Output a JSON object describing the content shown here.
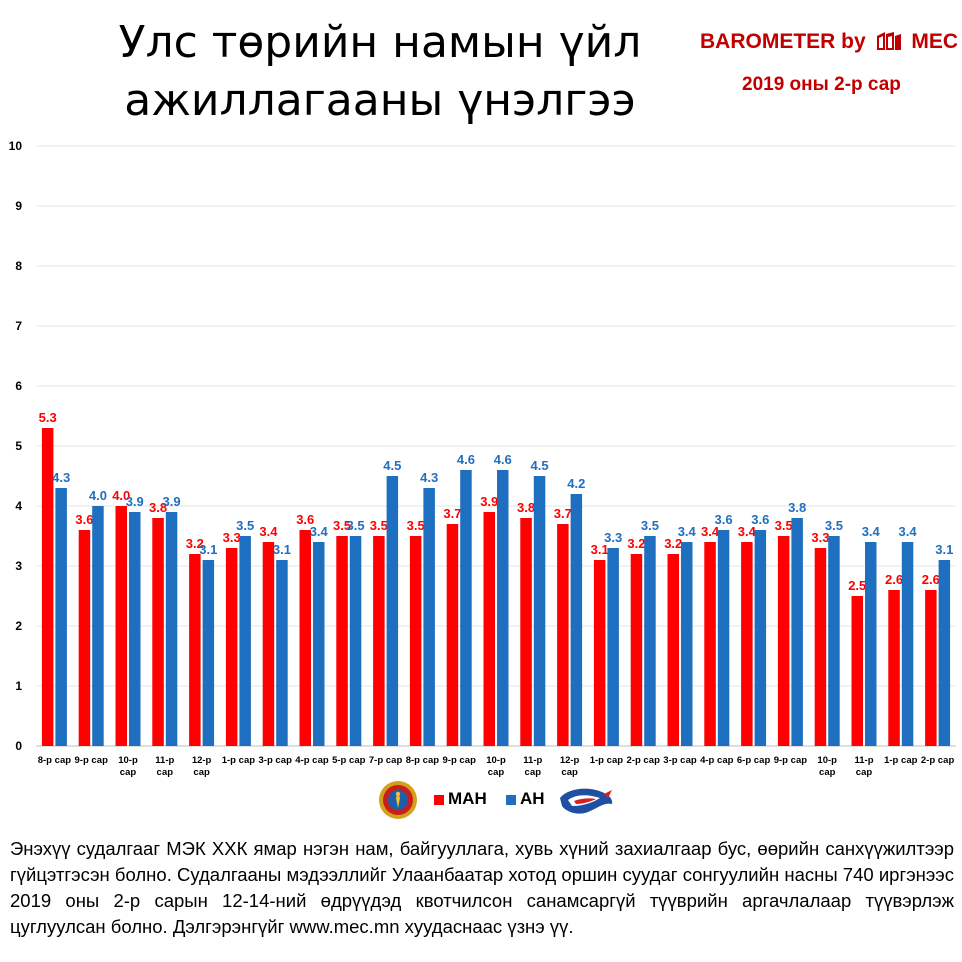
{
  "header": {
    "title_line1": "Улс төрийн намын үйл",
    "title_line2": "ажиллагааны үнэлгээ",
    "brand_left": "BAROMETER by",
    "brand_right": "MEC",
    "subtitle": "2019 оны 2-р сар"
  },
  "colors": {
    "series_man": "#ff0000",
    "series_an": "#1f6fc0",
    "brand": "#c00000"
  },
  "chart_data": {
    "type": "bar",
    "title": "Улс төрийн намын үйл ажиллагааны үнэлгээ",
    "ylim": [
      0,
      10
    ],
    "yticks": [
      0,
      1,
      2,
      3,
      4,
      5,
      6,
      7,
      8,
      9,
      10
    ],
    "grid": true,
    "legend_position": "bottom",
    "categories": [
      [
        "8-р сар"
      ],
      [
        "9-р сар"
      ],
      [
        "10-р",
        "сар"
      ],
      [
        "11-р",
        "сар"
      ],
      [
        "12-р",
        "сар"
      ],
      [
        "1-р сар"
      ],
      [
        "3-р сар"
      ],
      [
        "4-р сар"
      ],
      [
        "5-р сар"
      ],
      [
        "7-р сар"
      ],
      [
        "8-р сар"
      ],
      [
        "9-р сар"
      ],
      [
        "10-р",
        "сар"
      ],
      [
        "11-р",
        "сар"
      ],
      [
        "12-р",
        "сар"
      ],
      [
        "1-р сар"
      ],
      [
        "2-р сар"
      ],
      [
        "3-р сар"
      ],
      [
        "4-р сар"
      ],
      [
        "6-р сар"
      ],
      [
        "9-р сар"
      ],
      [
        "10-р",
        "сар"
      ],
      [
        "11-р",
        "сар"
      ],
      [
        "1-р сар"
      ],
      [
        "2-р сар"
      ]
    ],
    "series": [
      {
        "name": "МАН",
        "values": [
          5.3,
          3.6,
          4.0,
          3.8,
          3.2,
          3.3,
          3.4,
          3.6,
          3.5,
          3.5,
          3.5,
          3.7,
          3.9,
          3.8,
          3.7,
          3.1,
          3.2,
          3.2,
          3.4,
          3.4,
          3.5,
          3.3,
          2.5,
          2.6,
          2.6
        ]
      },
      {
        "name": "АН",
        "values": [
          4.3,
          4.0,
          3.9,
          3.9,
          3.1,
          3.5,
          3.1,
          3.4,
          3.5,
          4.5,
          4.3,
          4.6,
          4.6,
          4.5,
          4.2,
          3.3,
          3.5,
          3.4,
          3.6,
          3.6,
          3.8,
          3.5,
          3.4,
          3.4,
          3.1
        ]
      }
    ]
  },
  "legend": {
    "man_label": "МАН",
    "an_label": "АН"
  },
  "footnote": "Энэхүү судалгааг МЭК ХХК ямар нэгэн нам, байгууллага, хувь хүний захиалгаар бус, өөрийн санхүүжилтээр гүйцэтгэсэн болно. Судалгааны мэдээллийг Улаанбаатар хотод оршин суудаг сонгуулийн насны 740 иргэнээс 2019 оны 2-р сарын 12-14-ний өдрүүдэд квотчилсон санамсаргүй түүврийн аргачлалаар түүвэрлэж цуглуулсан болно. Дэлгэрэнгүйг www.mec.mn хуудаснаас үзнэ үү."
}
